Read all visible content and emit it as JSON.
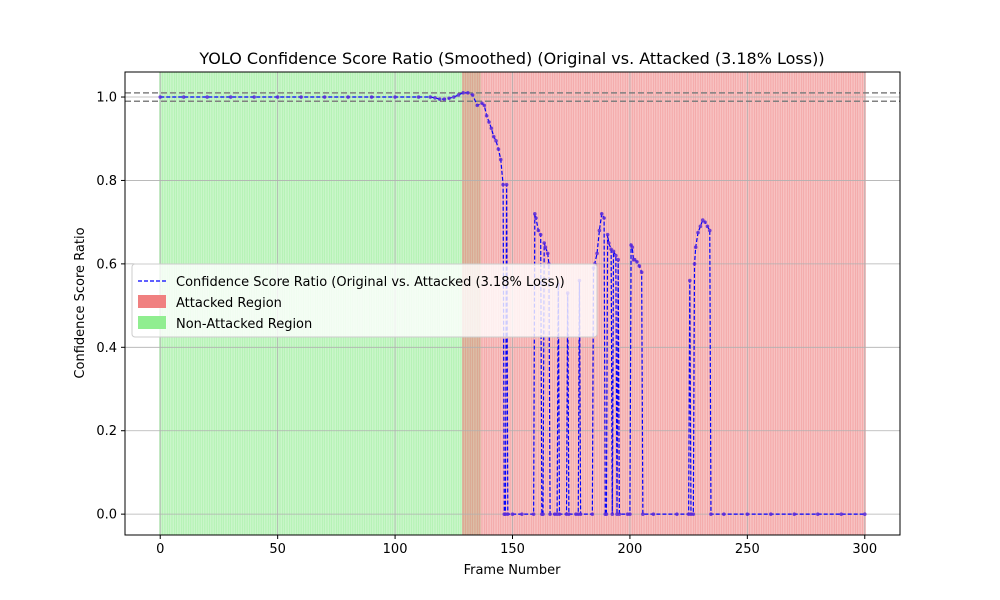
{
  "chart_data": {
    "type": "line",
    "title": "YOLO Confidence Score Ratio (Smoothed) (Original vs. Attacked (3.18% Loss))",
    "xlabel": "Frame Number",
    "ylabel": "Confidence Score Ratio",
    "xlim": [
      -15,
      315
    ],
    "ylim": [
      -0.05,
      1.06
    ],
    "xticks": [
      0,
      50,
      100,
      150,
      200,
      250,
      300
    ],
    "xtick_labels": [
      "0",
      "50",
      "100",
      "150",
      "200",
      "250",
      "300"
    ],
    "yticks": [
      0.0,
      0.2,
      0.4,
      0.6,
      0.8,
      1.0
    ],
    "ytick_labels": [
      "0.0",
      "0.2",
      "0.4",
      "0.6",
      "0.8",
      "1.0"
    ],
    "grid": true,
    "legend_position": "center-left",
    "reference_lines": [
      0.99,
      1.01
    ],
    "regions": [
      {
        "label": "Non-Attacked Region",
        "color": "#90ee90",
        "x_start": 0,
        "x_end": 136
      },
      {
        "label": "Attacked Region",
        "color": "#f08080",
        "x_start": 129,
        "x_end": 300
      }
    ],
    "series": [
      {
        "name": "Confidence Score Ratio (Original vs. Attacked (3.18% Loss))",
        "color": "#0000ff",
        "points": [
          [
            0,
            1.0
          ],
          [
            10,
            1.0
          ],
          [
            20,
            1.0
          ],
          [
            30,
            1.0
          ],
          [
            40,
            1.0
          ],
          [
            50,
            1.0
          ],
          [
            60,
            1.0
          ],
          [
            70,
            1.0
          ],
          [
            80,
            1.0
          ],
          [
            90,
            1.0
          ],
          [
            100,
            1.0
          ],
          [
            110,
            1.0
          ],
          [
            115,
            1.0
          ],
          [
            117,
            0.998
          ],
          [
            119,
            0.995
          ],
          [
            121,
            0.995
          ],
          [
            123,
            0.997
          ],
          [
            125,
            1.0
          ],
          [
            127,
            1.005
          ],
          [
            129,
            1.01
          ],
          [
            131,
            1.01
          ],
          [
            133,
            1.005
          ],
          [
            135,
            0.98
          ],
          [
            137,
            0.985
          ],
          [
            138,
            0.98
          ],
          [
            139,
            0.955
          ],
          [
            140,
            0.94
          ],
          [
            141,
            0.925
          ],
          [
            142,
            0.905
          ],
          [
            143,
            0.895
          ],
          [
            144,
            0.875
          ],
          [
            145,
            0.85
          ],
          [
            146,
            0.79
          ],
          [
            146.5,
            0.0
          ],
          [
            147,
            0.0
          ],
          [
            147.5,
            0.79
          ],
          [
            148,
            0.0
          ],
          [
            150,
            0.0
          ],
          [
            154,
            0.0
          ],
          [
            159,
            0.0
          ],
          [
            159.5,
            0.72
          ],
          [
            160,
            0.71
          ],
          [
            161,
            0.68
          ],
          [
            162,
            0.67
          ],
          [
            162.5,
            0.0
          ],
          [
            163,
            0.0
          ],
          [
            163.5,
            0.65
          ],
          [
            164,
            0.64
          ],
          [
            165,
            0.625
          ],
          [
            165.5,
            0.6
          ],
          [
            166,
            0.0
          ],
          [
            168,
            0.0
          ],
          [
            169,
            0.0
          ],
          [
            169.5,
            0.55
          ],
          [
            170,
            0.0
          ],
          [
            173,
            0.0
          ],
          [
            173.5,
            0.53
          ],
          [
            174,
            0.0
          ],
          [
            177,
            0.0
          ],
          [
            178,
            0.0
          ],
          [
            178.5,
            0.56
          ],
          [
            179,
            0.0
          ],
          [
            184,
            0.0
          ],
          [
            184.5,
            0.59
          ],
          [
            185,
            0.6
          ],
          [
            186,
            0.625
          ],
          [
            187,
            0.68
          ],
          [
            188,
            0.72
          ],
          [
            189,
            0.71
          ],
          [
            189.5,
            0.0
          ],
          [
            190,
            0.0
          ],
          [
            190.5,
            0.67
          ],
          [
            191,
            0.65
          ],
          [
            192,
            0.635
          ],
          [
            192.5,
            0.0
          ],
          [
            193,
            0.63
          ],
          [
            194,
            0.62
          ],
          [
            194.5,
            0.0
          ],
          [
            195,
            0.61
          ],
          [
            195.5,
            0.0
          ],
          [
            199,
            0.0
          ],
          [
            200,
            0.0
          ],
          [
            200.5,
            0.645
          ],
          [
            201,
            0.64
          ],
          [
            201.5,
            0.61
          ],
          [
            202,
            0.61
          ],
          [
            203,
            0.605
          ],
          [
            204,
            0.595
          ],
          [
            205,
            0.58
          ],
          [
            205.5,
            0.0
          ],
          [
            210,
            0.0
          ],
          [
            220,
            0.0
          ],
          [
            225,
            0.0
          ],
          [
            225.5,
            0.56
          ],
          [
            226,
            0.0
          ],
          [
            227,
            0.0
          ],
          [
            227.5,
            0.6
          ],
          [
            228,
            0.64
          ],
          [
            229,
            0.675
          ],
          [
            230,
            0.69
          ],
          [
            231,
            0.705
          ],
          [
            232,
            0.7
          ],
          [
            233,
            0.69
          ],
          [
            234,
            0.68
          ],
          [
            234.5,
            0.0
          ],
          [
            240,
            0.0
          ],
          [
            250,
            0.0
          ],
          [
            260,
            0.0
          ],
          [
            270,
            0.0
          ],
          [
            280,
            0.0
          ],
          [
            290,
            0.0
          ],
          [
            300,
            0.0
          ]
        ]
      }
    ]
  },
  "legend": {
    "line_label": "Confidence Score Ratio (Original vs. Attacked (3.18% Loss))",
    "attacked_label": "Attacked Region",
    "non_attacked_label": "Non-Attacked Region"
  },
  "colors": {
    "line": "#0000ff",
    "attacked": "#f08080",
    "non_attacked": "#90ee90",
    "grid": "#b0b0b0",
    "reference": "#808080"
  }
}
